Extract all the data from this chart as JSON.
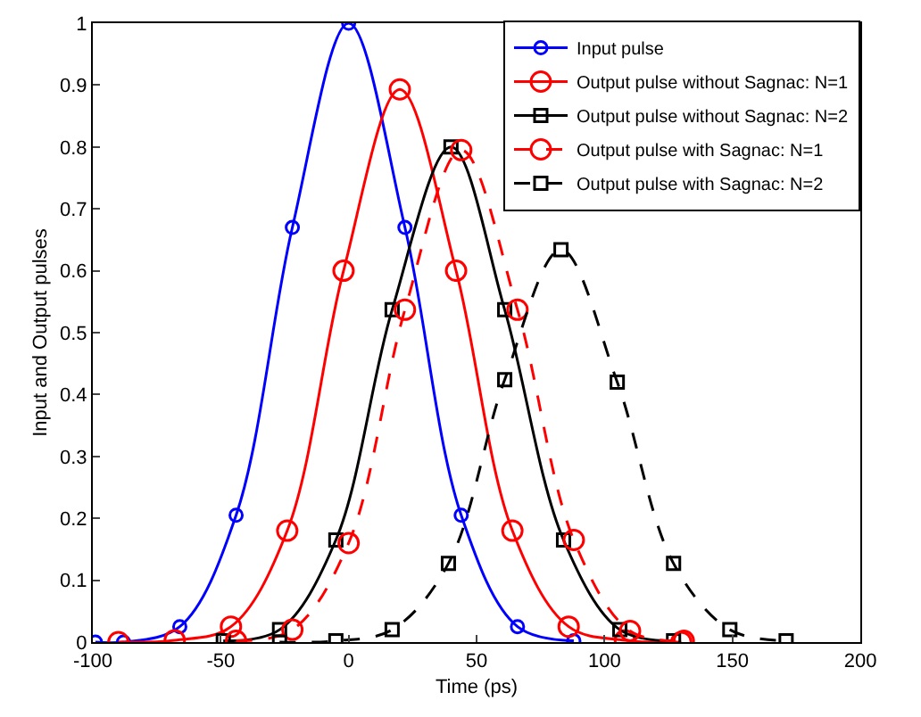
{
  "chart_data": {
    "type": "line",
    "xlabel": "Time (ps)",
    "ylabel": "Input and Output pulses",
    "xlim": [
      -100,
      200
    ],
    "ylim": [
      0,
      1
    ],
    "xticks": [
      -100,
      -50,
      0,
      50,
      100,
      150,
      200
    ],
    "yticks": [
      0,
      0.1,
      0.2,
      0.3,
      0.4,
      0.5,
      0.6,
      0.7,
      0.8,
      0.9,
      1
    ],
    "legend": "top right",
    "series": [
      {
        "name": "Input pulse",
        "color": "#0000ff",
        "marker": "circle",
        "line_style": "solid",
        "x": [
          -99,
          -88,
          -66,
          -44,
          -22,
          0,
          22,
          44,
          66,
          88
        ],
        "values": [
          0,
          0,
          0.025,
          0.205,
          0.67,
          1,
          0.67,
          0.205,
          0.025,
          0.002
        ]
      },
      {
        "name": "Output pulse without Sagnac: N=1",
        "color": "#ff0000",
        "marker": "circle",
        "line_style": "solid",
        "x": [
          -90,
          -68,
          -46,
          -24,
          -2,
          20,
          42,
          64,
          86,
          108,
          130
        ],
        "values": [
          0,
          0.003,
          0.025,
          0.18,
          0.6,
          0.893,
          0.6,
          0.18,
          0.025,
          0.003,
          0
        ]
      },
      {
        "name": "Output pulse without Sagnac: N=2",
        "color": "#000000",
        "marker": "square",
        "line_style": "solid",
        "x": [
          -49,
          -27,
          -5,
          17,
          40,
          61,
          84,
          106,
          127
        ],
        "values": [
          0.002,
          0.02,
          0.165,
          0.537,
          0.8,
          0.537,
          0.165,
          0.02,
          0.002
        ]
      },
      {
        "name": "Output pulse with Sagnac: N=1",
        "color": "#ff0000",
        "marker": "circle",
        "line_style": "dashed",
        "x": [
          -44,
          -22,
          0,
          22,
          44,
          66,
          88,
          110,
          131
        ],
        "values": [
          0.002,
          0.02,
          0.16,
          0.537,
          0.795,
          0.537,
          0.165,
          0.018,
          0.002
        ]
      },
      {
        "name": "Output pulse with Sagnac: N=2",
        "color": "#000000",
        "marker": "square",
        "line_style": "dashed",
        "x": [
          -27,
          -5,
          17,
          39,
          61,
          83,
          105,
          127,
          149,
          171
        ],
        "values": [
          0,
          0.002,
          0.02,
          0.127,
          0.424,
          0.634,
          0.42,
          0.127,
          0.02,
          0.002
        ]
      }
    ]
  }
}
